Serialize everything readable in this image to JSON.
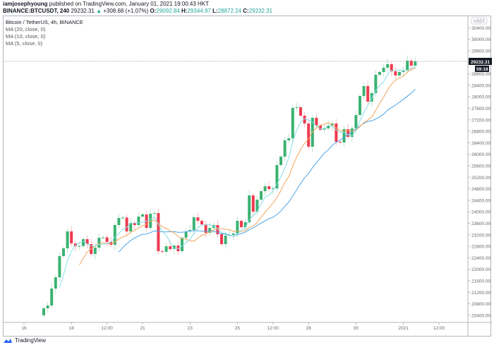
{
  "header": {
    "author": "iamjosephyoung",
    "published": "published on TradingView.com, January 01, 2021 19:00:43 HKT",
    "symbol": "BINANCE:BTCUSDT, 240",
    "last": "29232.31",
    "change": "+308.68 (+1.07%)",
    "o_label": "O:",
    "o": "29092.84",
    "h_label": "H:",
    "h": "29344.97",
    "l_label": "L:",
    "l": "28872.24",
    "c_label": "C:",
    "c": "29232.31"
  },
  "legend": {
    "title": "Bitcoin / TetherUS, 4h, BINANCE",
    "ma": [
      "MA (20, close, 0)",
      "MA (10, close, 0)",
      "MA (5, close, 0)"
    ]
  },
  "price_axis": {
    "currency": "USDT",
    "last_price_label": "29232.31",
    "countdown": "59:18"
  },
  "logo": "TradingView",
  "colors": {
    "up": "#3bb273",
    "down": "#ef3b50",
    "ma20": "#4aa3e8",
    "ma10": "#f4a55a",
    "ma5": "#86dde6",
    "last_line": "#9598a1"
  },
  "chart_data": {
    "type": "candlestick",
    "timeframe": "4h",
    "first_candle": "2020-12-16 20:00",
    "first_open": 20400,
    "close": [
      20643,
      20741,
      21330,
      21723,
      22459,
      22729,
      23318,
      22901,
      22802,
      22810,
      23048,
      22876,
      22532,
      22753,
      23097,
      23110,
      22950,
      22851,
      23539,
      23784,
      23800,
      23318,
      23612,
      23539,
      23833,
      23907,
      23440,
      23931,
      23955,
      22631,
      22610,
      22802,
      22704,
      22827,
      22631,
      23097,
      23318,
      23367,
      23809,
      23686,
      23563,
      23269,
      23440,
      23539,
      23220,
      22876,
      23171,
      23195,
      23244,
      23686,
      23465,
      23637,
      24569,
      24005,
      24422,
      24717,
      24888,
      24790,
      24815,
      25625,
      25919,
      26483,
      26557,
      27612,
      27637,
      27342,
      27072,
      26263,
      27269,
      26999,
      26852,
      26901,
      26999,
      27072,
      26434,
      26410,
      26876,
      26606,
      26901,
      27367,
      28029,
      28373,
      27833,
      28128,
      28766,
      28864,
      29011,
      29134,
      28888,
      28741,
      28864,
      28913,
      29256,
      29085,
      29232.31
    ],
    "moving_averages": [
      {
        "name": "MA (20, close, 0)",
        "period": 20
      },
      {
        "name": "MA (10, close, 0)",
        "period": 10
      },
      {
        "name": "MA (5, close, 0)",
        "period": 5
      }
    ],
    "ylim": [
      20200,
      30800
    ],
    "y_ticks": [
      "20400.00",
      "20800.00",
      "21200.00",
      "21600.00",
      "22000.00",
      "22400.00",
      "22800.00",
      "23200.00",
      "23600.00",
      "24000.00",
      "24400.00",
      "24800.00",
      "25200.00",
      "25600.00",
      "26000.00",
      "26400.00",
      "26800.00",
      "27200.00",
      "27600.00",
      "28000.00",
      "28400.00",
      "28800.00",
      "29600.00",
      "30000.00",
      "30400.00"
    ],
    "x_ticks": [
      {
        "label": "16",
        "time": "2020-12-16 00:00"
      },
      {
        "label": "18",
        "time": "2020-12-18 00:00"
      },
      {
        "label": "12:00",
        "time": "2020-12-19 12:00"
      },
      {
        "label": "21",
        "time": "2020-12-21 00:00"
      },
      {
        "label": "23",
        "time": "2020-12-23 00:00"
      },
      {
        "label": "25",
        "time": "2020-12-25 00:00"
      },
      {
        "label": "12:00",
        "time": "2020-12-26 12:00"
      },
      {
        "label": "28",
        "time": "2020-12-28 00:00"
      },
      {
        "label": "30",
        "time": "2020-12-30 00:00"
      },
      {
        "label": "2021",
        "time": "2021-01-01 00:00"
      },
      {
        "label": "12:00",
        "time": "2021-01-02 12:00"
      }
    ],
    "grid": false
  }
}
